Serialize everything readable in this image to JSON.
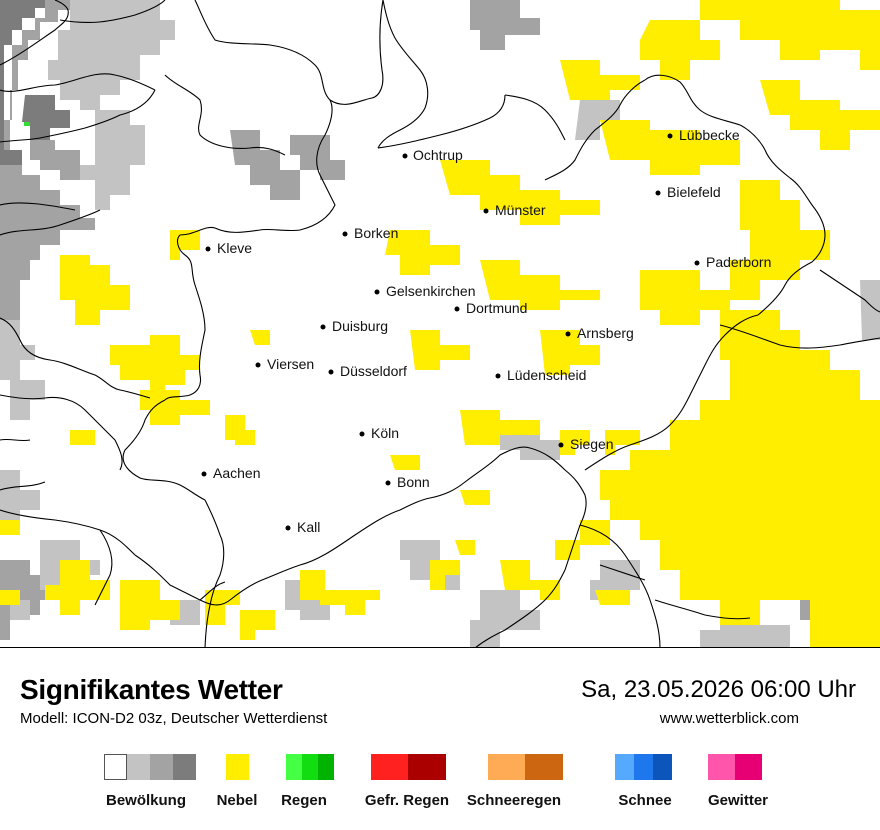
{
  "title": "Signifikantes Wetter",
  "model_line": "Modell: ICON-D2 03z, Deutscher Wetterdienst",
  "datetime": "Sa, 23.05.2026 06:00 Uhr",
  "website": "www.wetterblick.com",
  "colors": {
    "cloud_light": "#c3c3c3",
    "cloud_mid": "#a3a3a3",
    "cloud_dark": "#7c7c7c",
    "fog": "#ffee00",
    "rain_marker": "#33dd33",
    "border": "#000000"
  },
  "cities": [
    {
      "name": "Ochtrup"
    },
    {
      "name": "Lübbecke"
    },
    {
      "name": "Bielefeld"
    },
    {
      "name": "Münster"
    },
    {
      "name": "Borken"
    },
    {
      "name": "Kleve"
    },
    {
      "name": "Paderborn"
    },
    {
      "name": "Gelsenkirchen"
    },
    {
      "name": "Dortmund"
    },
    {
      "name": "Duisburg"
    },
    {
      "name": "Arnsberg"
    },
    {
      "name": "Viersen"
    },
    {
      "name": "Düsseldorf"
    },
    {
      "name": "Lüdenscheid"
    },
    {
      "name": "Köln"
    },
    {
      "name": "Siegen"
    },
    {
      "name": "Aachen"
    },
    {
      "name": "Bonn"
    },
    {
      "name": "Kall"
    }
  ],
  "legend": [
    {
      "label": "Bewölkung",
      "colors": [
        "#ffffff",
        "#c3c3c3",
        "#a3a3a3",
        "#7c7c7c"
      ]
    },
    {
      "label": "Nebel",
      "colors": [
        "#ffee00"
      ]
    },
    {
      "label": "Regen",
      "colors": [
        "#44ff44",
        "#11dd11",
        "#00b300"
      ]
    },
    {
      "label": "Gefr. Regen",
      "colors": [
        "#ff2020",
        "#aa0000"
      ]
    },
    {
      "label": "Schneeregen",
      "colors": [
        "#ffaa55",
        "#cc6611"
      ]
    },
    {
      "label": "Schnee",
      "colors": [
        "#55aaff",
        "#1f77ee",
        "#0b55bb"
      ]
    },
    {
      "label": "Gewitter",
      "colors": [
        "#ff55aa",
        "#e60073"
      ]
    }
  ]
}
